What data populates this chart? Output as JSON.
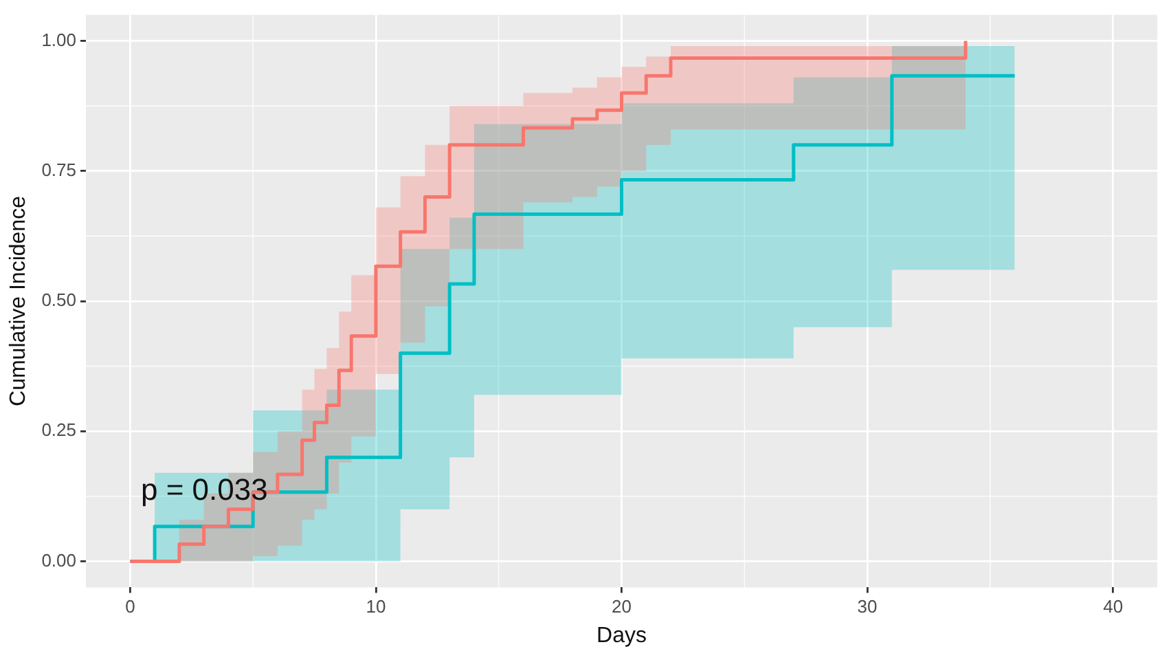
{
  "chart_data": {
    "type": "step",
    "xlabel": "Days",
    "ylabel": "Cumulative Incidence",
    "annotations": [
      "p = 0.033"
    ],
    "xlim": [
      -1.8,
      41.8
    ],
    "xticks": [
      0,
      10,
      20,
      30,
      40
    ],
    "ylim": [
      -0.05,
      1.05
    ],
    "yticks": [
      {
        "value": 0,
        "label": "0.00"
      },
      {
        "value": 0.25,
        "label": "0.25"
      },
      {
        "value": 0.5,
        "label": "0.50"
      },
      {
        "value": 0.75,
        "label": "0.75"
      },
      {
        "value": 1,
        "label": "1.00"
      }
    ],
    "grid": true,
    "legend": false,
    "marker": "none",
    "line_style": "solid",
    "series": [
      {
        "color": "#f8766d",
        "x": [
          0,
          2,
          3,
          4,
          5,
          6,
          7,
          7.5,
          8,
          8.5,
          9,
          10,
          11,
          12,
          13,
          16,
          18,
          19,
          20,
          21,
          22,
          34
        ],
        "values": [
          0,
          0.033,
          0.067,
          0.1,
          0.133,
          0.167,
          0.233,
          0.267,
          0.3,
          0.367,
          0.433,
          0.567,
          0.633,
          0.7,
          0.8,
          0.833,
          0.85,
          0.867,
          0.9,
          0.933,
          0.967,
          1.0
        ],
        "lower": [
          0,
          0,
          0,
          0,
          0.01,
          0.03,
          0.08,
          0.1,
          0.13,
          0.19,
          0.24,
          0.36,
          0.42,
          0.49,
          0.6,
          0.69,
          0.7,
          0.72,
          0.75,
          0.8,
          0.83,
          0.85
        ],
        "upper": [
          0,
          0.08,
          0.13,
          0.17,
          0.21,
          0.25,
          0.33,
          0.37,
          0.41,
          0.48,
          0.55,
          0.68,
          0.74,
          0.8,
          0.875,
          0.9,
          0.91,
          0.93,
          0.95,
          0.97,
          0.99,
          1.0
        ]
      },
      {
        "color": "#00bfc4",
        "x": [
          0,
          1,
          5,
          8,
          11,
          13,
          14,
          20,
          27,
          31,
          36
        ],
        "values": [
          0,
          0.067,
          0.133,
          0.2,
          0.4,
          0.533,
          0.667,
          0.733,
          0.8,
          0.933,
          0.933
        ],
        "lower": [
          0,
          0,
          0,
          0,
          0.1,
          0.2,
          0.32,
          0.39,
          0.45,
          0.56,
          0.56
        ],
        "upper": [
          0,
          0.17,
          0.29,
          0.33,
          0.6,
          0.66,
          0.84,
          0.88,
          0.93,
          0.99,
          0.99
        ]
      }
    ]
  }
}
